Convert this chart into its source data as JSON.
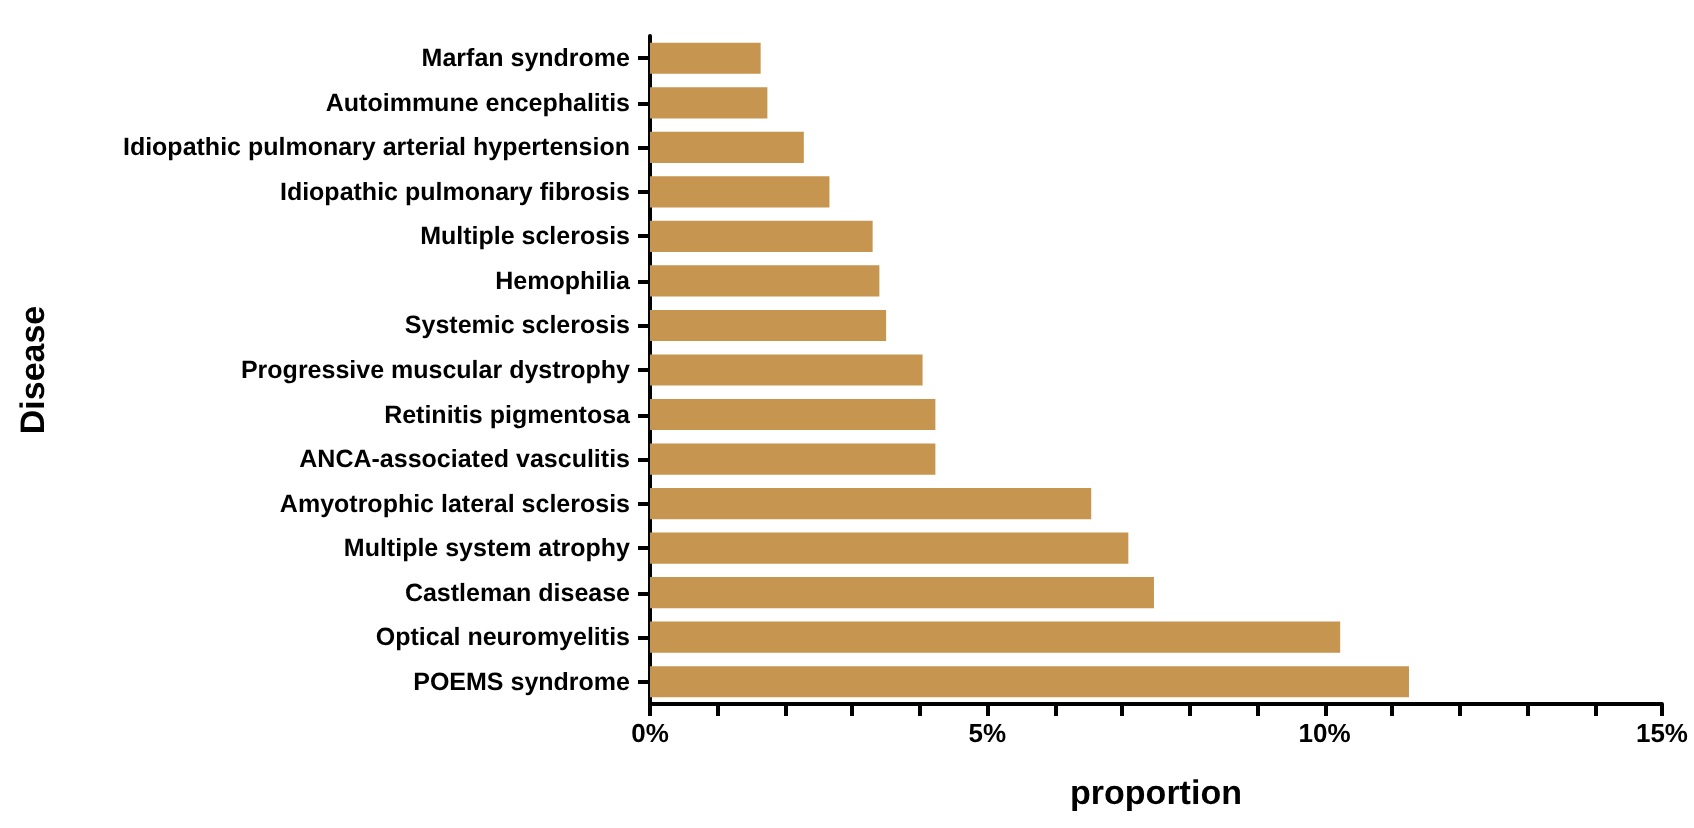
{
  "chart_data": {
    "type": "bar",
    "orientation": "horizontal",
    "xlabel": "proportion",
    "ylabel": "Disease",
    "categories": [
      "Marfan syndrome",
      "Autoimmune encephalitis",
      "Idiopathic pulmonary arterial hypertension",
      "Idiopathic pulmonary fibrosis",
      "Multiple sclerosis",
      "Hemophilia",
      "Systemic sclerosis",
      "Progressive muscular dystrophy",
      "Retinitis pigmentosa",
      "ANCA-associated vasculitis",
      "Amyotrophic lateral sclerosis",
      "Multiple system atrophy",
      "Castleman disease",
      "Optical neuromyelitis",
      "POEMS syndrome"
    ],
    "values": [
      1.64,
      1.74,
      2.28,
      2.66,
      3.3,
      3.4,
      3.5,
      4.04,
      4.23,
      4.23,
      6.54,
      7.09,
      7.47,
      10.23,
      11.25
    ],
    "color": "#c69550",
    "xlim": [
      0,
      15
    ],
    "xticks": [
      {
        "value": 0,
        "label": "0%"
      },
      {
        "value": 1,
        "label": null
      },
      {
        "value": 2,
        "label": null
      },
      {
        "value": 3,
        "label": null
      },
      {
        "value": 4,
        "label": null
      },
      {
        "value": 5,
        "label": "5%"
      },
      {
        "value": 6,
        "label": null
      },
      {
        "value": 7,
        "label": null
      },
      {
        "value": 8,
        "label": null
      },
      {
        "value": 9,
        "label": null
      },
      {
        "value": 10,
        "label": "10%"
      },
      {
        "value": 11,
        "label": null
      },
      {
        "value": 12,
        "label": null
      },
      {
        "value": 13,
        "label": null
      },
      {
        "value": 14,
        "label": null
      },
      {
        "value": 15,
        "label": "15%"
      }
    ],
    "grid": false
  }
}
